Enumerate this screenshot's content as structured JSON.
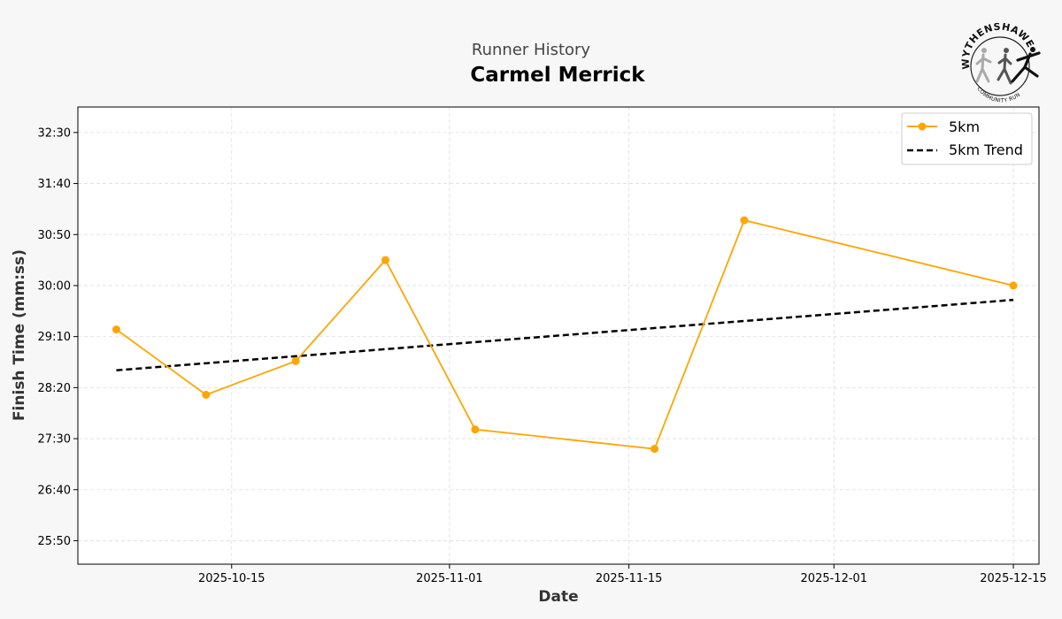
{
  "header": {
    "subtitle": "Runner History",
    "title": "Carmel Merrick"
  },
  "logo": {
    "text_top": "WYTHENSHAWE",
    "text_bottom": "COMMUNITY RUN"
  },
  "colors": {
    "series": "#FFA500",
    "trend": "#000000",
    "grid": "#dddddd",
    "background": "#f7f7f7"
  },
  "chart_data": {
    "type": "line",
    "xlabel": "Date",
    "ylabel": "Finish Time (mm:ss)",
    "x_ticks": [
      "2025-10-15",
      "2025-11-01",
      "2025-11-15",
      "2025-12-01",
      "2025-12-15"
    ],
    "y_ticks": [
      "25:50",
      "26:40",
      "27:30",
      "28:20",
      "29:10",
      "30:00",
      "30:50",
      "31:40",
      "32:30"
    ],
    "xlim": [
      "2025-10-03",
      "2025-12-17"
    ],
    "ylim": [
      "25:27",
      "32:55"
    ],
    "grid": true,
    "grid_style": "dashed",
    "legend_position": "top-right",
    "series": [
      {
        "name": "5km",
        "style": "line-with-markers",
        "points": [
          {
            "x": "2025-10-06",
            "y": "29:17"
          },
          {
            "x": "2025-10-13",
            "y": "28:13"
          },
          {
            "x": "2025-10-20",
            "y": "28:46"
          },
          {
            "x": "2025-10-27",
            "y": "30:25"
          },
          {
            "x": "2025-11-03",
            "y": "27:39"
          },
          {
            "x": "2025-11-17",
            "y": "27:20"
          },
          {
            "x": "2025-11-24",
            "y": "31:04"
          },
          {
            "x": "2025-12-15",
            "y": "30:00"
          }
        ]
      },
      {
        "name": "5km Trend",
        "style": "dashed",
        "points": [
          {
            "x": "2025-10-06",
            "y": "28:37"
          },
          {
            "x": "2025-12-15",
            "y": "29:46"
          }
        ]
      }
    ]
  }
}
